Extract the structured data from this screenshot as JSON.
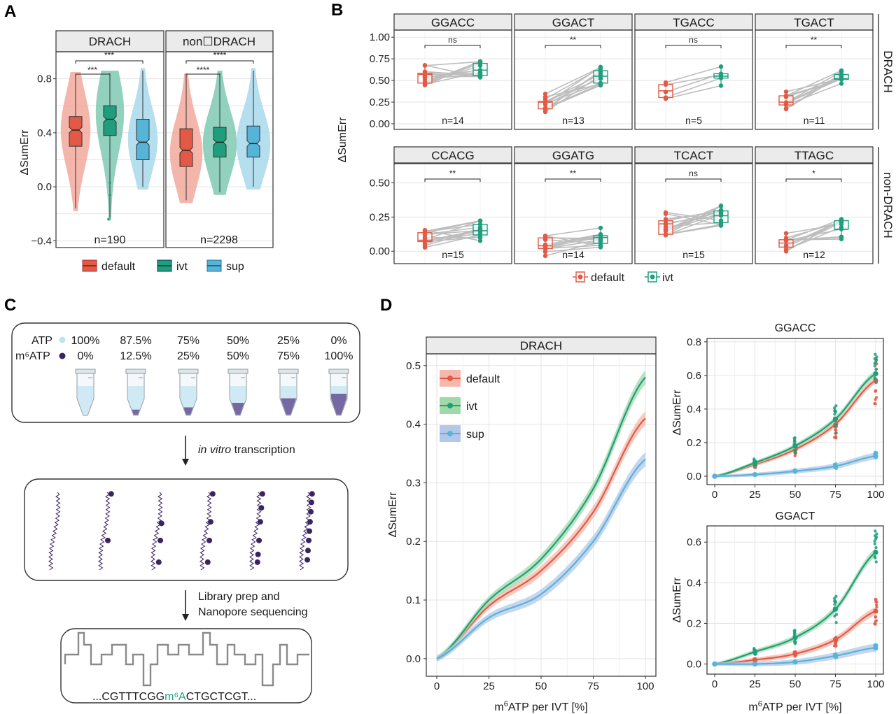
{
  "colors": {
    "default": "#e25a45",
    "ivt": "#1f9e7d",
    "sup": "#56b4d9",
    "m6a": "#3b2462",
    "atp": "#bfe3f0",
    "trace": "#888888"
  },
  "panels": {
    "a": "A",
    "b": "B",
    "c": "C",
    "d": "D"
  },
  "legend_abc": {
    "default": "default",
    "ivt": "ivt",
    "sup": "sup"
  },
  "chart_data": [
    {
      "id": "A",
      "type": "violin",
      "facets": [
        "DRACH",
        "non☐DRACH"
      ],
      "groups": [
        "default",
        "ivt",
        "sup"
      ],
      "ylabel": "ΔSumErr",
      "yticks": [
        "−0.4",
        "0.0",
        "0.4",
        "0.8"
      ],
      "ylim": [
        -0.45,
        1.0
      ],
      "n": [
        "n=190",
        "n=2298"
      ],
      "medians": [
        [
          0.42,
          0.5,
          0.33
        ],
        [
          0.27,
          0.33,
          0.32
        ]
      ],
      "quartiles": [
        [
          [
            0.3,
            0.52
          ],
          [
            0.38,
            0.6
          ],
          [
            0.2,
            0.5
          ]
        ],
        [
          [
            0.15,
            0.43
          ],
          [
            0.22,
            0.44
          ],
          [
            0.22,
            0.45
          ]
        ]
      ],
      "significance": [
        [
          "***",
          "***"
        ],
        [
          "****",
          "****"
        ]
      ]
    },
    {
      "id": "B",
      "type": "paired-box",
      "ylabel": "ΔSumErr",
      "rows": [
        {
          "label": "DRACH",
          "yticks": [
            "0.00",
            "0.25",
            "0.50",
            "0.75",
            "1.00"
          ],
          "ylim": [
            0,
            1.05
          ],
          "motifs": [
            {
              "name": "GGACC",
              "sig": "ns",
              "n": "n=14",
              "default_median": 0.57,
              "ivt_median": 0.62
            },
            {
              "name": "GGACT",
              "sig": "**",
              "n": "n=13",
              "default_median": 0.25,
              "ivt_median": 0.55
            },
            {
              "name": "TGACC",
              "sig": "ns",
              "n": "n=5",
              "default_median": 0.38,
              "ivt_median": 0.55
            },
            {
              "name": "TGACT",
              "sig": "**",
              "n": "n=11",
              "default_median": 0.25,
              "ivt_median": 0.52
            }
          ]
        },
        {
          "label": "non-DRACH",
          "yticks": [
            "0.00",
            "0.25",
            "0.50"
          ],
          "ylim": [
            -0.05,
            0.62
          ],
          "motifs": [
            {
              "name": "CCACG",
              "sig": "**",
              "n": "n=15",
              "default_median": 0.08,
              "ivt_median": 0.15
            },
            {
              "name": "GGATG",
              "sig": "**",
              "n": "n=14",
              "default_median": 0.04,
              "ivt_median": 0.1
            },
            {
              "name": "TCACT",
              "sig": "ns",
              "n": "n=15",
              "default_median": 0.2,
              "ivt_median": 0.26
            },
            {
              "name": "TTAGC",
              "sig": "*",
              "n": "n=12",
              "default_median": 0.06,
              "ivt_median": 0.16
            }
          ]
        }
      ],
      "legend": [
        "default",
        "ivt"
      ]
    },
    {
      "id": "D-main",
      "type": "line",
      "facet": "DRACH",
      "xlabel": "m⁶ATP per IVT [%]",
      "ylabel": "ΔSumErr",
      "x": [
        0,
        25,
        50,
        75,
        100
      ],
      "xticks": [
        "0",
        "25",
        "50",
        "75",
        "100"
      ],
      "yticks": [
        "0.0",
        "0.1",
        "0.2",
        "0.3",
        "0.4",
        "0.5"
      ],
      "ylim": [
        -0.03,
        0.52
      ],
      "series": [
        {
          "name": "default",
          "values": [
            0.0,
            0.09,
            0.15,
            0.25,
            0.41
          ]
        },
        {
          "name": "ivt",
          "values": [
            0.0,
            0.1,
            0.17,
            0.29,
            0.48
          ]
        },
        {
          "name": "sup",
          "values": [
            0.0,
            0.07,
            0.11,
            0.2,
            0.34
          ]
        }
      ]
    },
    {
      "id": "D-GGACC",
      "type": "line+scatter",
      "title": "GGACC",
      "xlabel": "",
      "ylabel": "ΔSumErr",
      "x": [
        0,
        25,
        50,
        75,
        100
      ],
      "xticks": [
        "0",
        "25",
        "50",
        "75",
        "100"
      ],
      "yticks": [
        "0.0",
        "0.2",
        "0.4",
        "0.6",
        "0.8"
      ],
      "ylim": [
        -0.05,
        0.82
      ],
      "series": [
        {
          "name": "default",
          "values": [
            0.0,
            0.07,
            0.16,
            0.31,
            0.57
          ]
        },
        {
          "name": "ivt",
          "values": [
            0.0,
            0.08,
            0.18,
            0.34,
            0.61
          ]
        },
        {
          "name": "sup",
          "values": [
            0.0,
            0.01,
            0.03,
            0.06,
            0.12
          ]
        }
      ]
    },
    {
      "id": "D-GGACT",
      "type": "line+scatter",
      "title": "GGACT",
      "xlabel": "m⁶ATP per IVT [%]",
      "ylabel": "ΔSumErr",
      "x": [
        0,
        25,
        50,
        75,
        100
      ],
      "xticks": [
        "0",
        "25",
        "50",
        "75",
        "100"
      ],
      "yticks": [
        "0.0",
        "0.2",
        "0.4",
        "0.6"
      ],
      "ylim": [
        -0.05,
        0.68
      ],
      "series": [
        {
          "name": "default",
          "values": [
            0.0,
            0.02,
            0.05,
            0.12,
            0.26
          ]
        },
        {
          "name": "ivt",
          "values": [
            0.0,
            0.06,
            0.13,
            0.27,
            0.55
          ]
        },
        {
          "name": "sup",
          "values": [
            0.0,
            0.0,
            0.01,
            0.04,
            0.08
          ]
        }
      ]
    }
  ],
  "panel_c": {
    "atp_label": "ATP",
    "m6atp_label": "m⁶ATP",
    "atp_pct": [
      "100%",
      "87.5%",
      "75%",
      "50%",
      "25%",
      "0%"
    ],
    "m6atp_pct": [
      "0%",
      "12.5%",
      "25%",
      "50%",
      "75%",
      "100%"
    ],
    "step1_italic": "in vitro",
    "step1_rest": " transcription",
    "step2_line1": "Library prep and",
    "step2_line2": "Nanopore sequencing",
    "seq_a": "...CGTTTCGG",
    "seq_mod": "m⁶A",
    "seq_b": "CTGCTCGT..."
  }
}
